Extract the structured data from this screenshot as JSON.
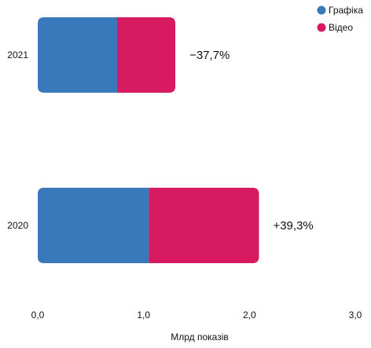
{
  "chart_data": {
    "type": "bar",
    "orientation": "horizontal",
    "stacked": true,
    "categories": [
      "2021",
      "2020"
    ],
    "series": [
      {
        "name": "Графіка",
        "color": "#3a78bc",
        "values": [
          0.75,
          1.05
        ]
      },
      {
        "name": "Відео",
        "color": "#d81b60",
        "values": [
          0.55,
          1.04
        ]
      }
    ],
    "annotations": [
      "−37,7%",
      "+39,3%"
    ],
    "xlabel": "Млрд показів",
    "xlim": [
      0,
      3
    ],
    "xticks": [
      "0,0",
      "1,0",
      "2,0",
      "3,0"
    ],
    "legend_position": "top-right",
    "grid": false
  }
}
